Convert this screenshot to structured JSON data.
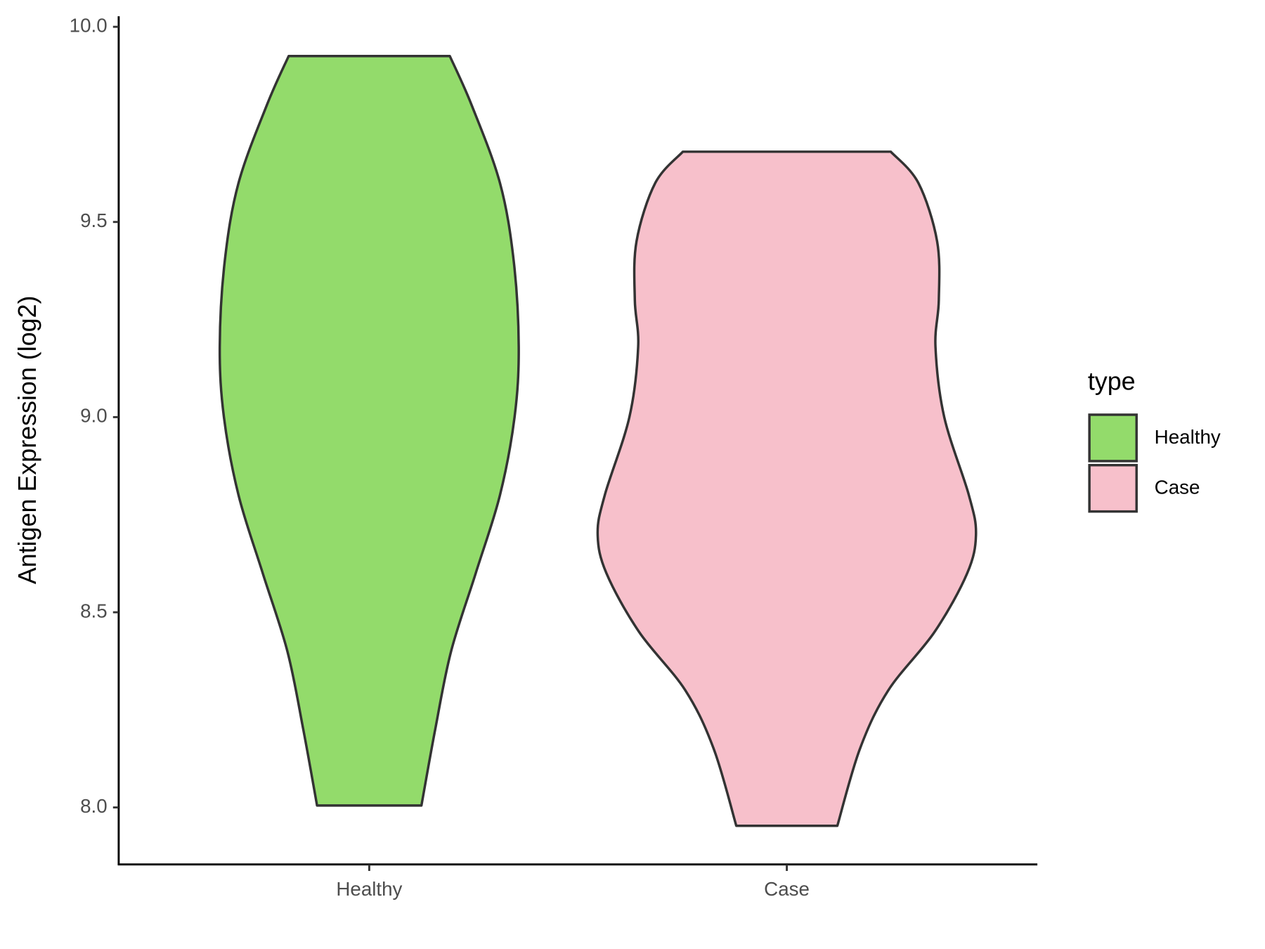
{
  "chart_data": {
    "type": "violin",
    "y_label": "Antigen Expression (log2)",
    "legend_title": "type",
    "categories": [
      "Healthy",
      "Case"
    ],
    "series": [
      {
        "name": "Healthy",
        "color": "#93db6b",
        "y": [
          9.925,
          9.8,
          9.6,
          9.4,
          9.18,
          9.0,
          8.8,
          8.6,
          8.4,
          8.2,
          8.005
        ],
        "half_width": [
          0.193,
          0.245,
          0.313,
          0.346,
          0.358,
          0.348,
          0.313,
          0.255,
          0.196,
          0.158,
          0.125
        ]
      },
      {
        "name": "Case",
        "color": "#f7c0cb",
        "y": [
          9.68,
          9.6,
          9.45,
          9.3,
          9.18,
          9.0,
          8.8,
          8.7,
          8.6,
          8.45,
          8.3,
          8.15,
          7.953
        ],
        "half_width": [
          0.249,
          0.315,
          0.36,
          0.364,
          0.356,
          0.377,
          0.436,
          0.453,
          0.432,
          0.354,
          0.243,
          0.175,
          0.121
        ]
      }
    ],
    "ylim": [
      7.854,
      10.027
    ],
    "yticks": [
      {
        "value": 8,
        "label": "8.0"
      },
      8.5,
      {
        "value": 9,
        "label": "9.0"
      },
      9.5,
      {
        "value": 10,
        "label": "10.0"
      }
    ],
    "grid": false,
    "legend": "right"
  }
}
